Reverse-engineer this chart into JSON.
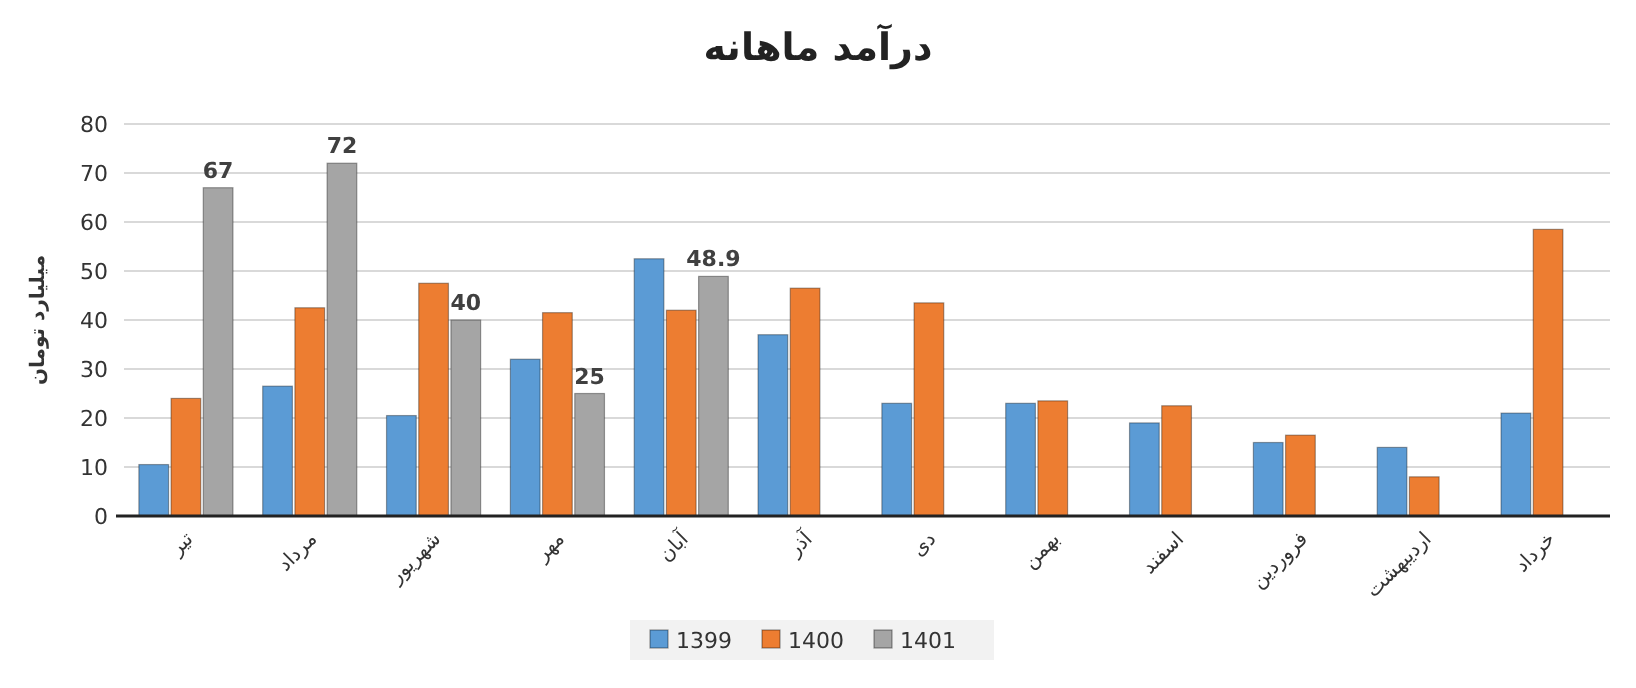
{
  "chart_data": {
    "type": "bar",
    "title": "درآمد ماهانه",
    "ylabel": "میلیارد تومان",
    "categories": [
      "تیر",
      "مرداد",
      "شهریور",
      "مهر",
      "آبان",
      "آذر",
      "دی",
      "بهمن",
      "اسفند",
      "فروردین",
      "اردیبهشت",
      "خرداد"
    ],
    "series": [
      {
        "name": "1399",
        "color": "#5b9bd5",
        "values": [
          10.5,
          26.5,
          20.5,
          32,
          52.5,
          37,
          23,
          23,
          19,
          15,
          14,
          21
        ]
      },
      {
        "name": "1400",
        "color": "#ed7d31",
        "values": [
          24,
          42.5,
          47.5,
          41.5,
          42,
          46.5,
          43.5,
          23.5,
          22.5,
          16.5,
          8,
          58.5
        ]
      },
      {
        "name": "1401",
        "color": "#a5a5a5",
        "values": [
          67,
          72,
          40,
          25,
          48.9,
          null,
          null,
          null,
          null,
          null,
          null,
          null
        ],
        "value_labels": [
          "67",
          "72",
          "40",
          "25",
          "48.9",
          null,
          null,
          null,
          null,
          null,
          null,
          null
        ]
      }
    ],
    "ylim": [
      0,
      80
    ],
    "yticks": [
      0,
      10,
      20,
      30,
      40,
      50,
      60,
      70,
      80
    ],
    "grid": "y",
    "legend": "bottom"
  }
}
